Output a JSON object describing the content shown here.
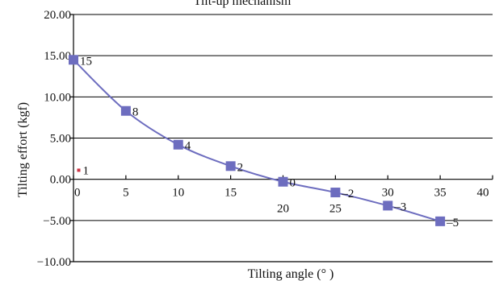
{
  "chart_data": {
    "type": "line",
    "title": "Tilt-up mechanism",
    "xlabel": "Tilting angle (° )",
    "ylabel": "Tilting effort (kgf)",
    "xlim": [
      0,
      40
    ],
    "ylim": [
      -10,
      20
    ],
    "x_ticks": [
      "0",
      "5",
      "10",
      "15",
      "20",
      "25",
      "30",
      "35",
      "40"
    ],
    "y_ticks": [
      "20.00",
      "15.00",
      "10.00",
      "5.00",
      "0.00",
      "-5.00",
      "-10.00"
    ],
    "grid": "horizontal",
    "series": [
      {
        "x": [
          0,
          5,
          10,
          15,
          20,
          25,
          30,
          35
        ],
        "y": [
          14.5,
          8.3,
          4.2,
          1.6,
          -0.3,
          -1.6,
          -3.2,
          -5.1
        ],
        "labels": [
          "15",
          "8",
          "4",
          "2",
          "0",
          "–2",
          "–3",
          "–5"
        ],
        "color": "#6d6dbf",
        "marker": "square"
      }
    ],
    "annotations": [
      {
        "text": "1",
        "x": 0.5,
        "y": 1.1,
        "marker_color": "#cc3344"
      }
    ]
  }
}
